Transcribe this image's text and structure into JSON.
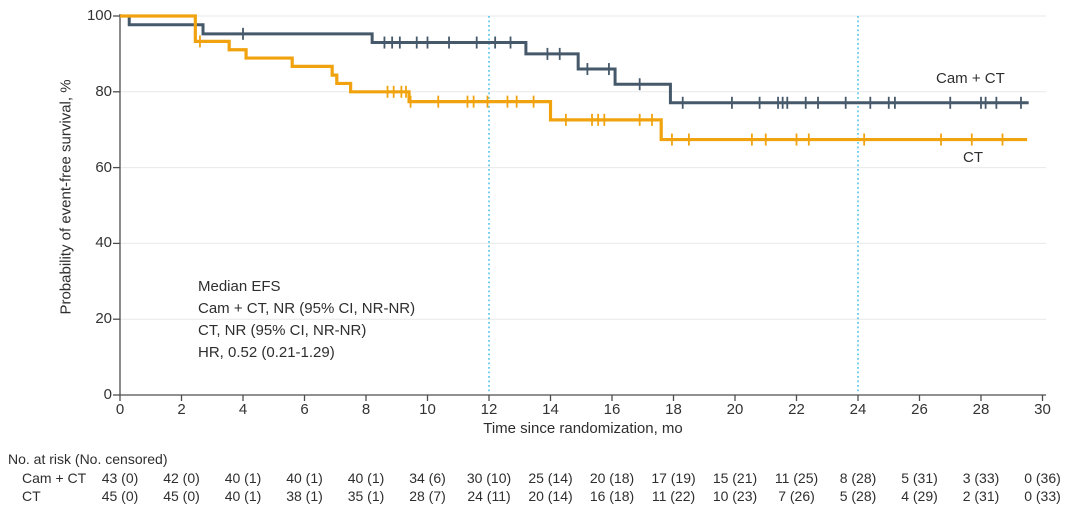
{
  "chart_data": {
    "type": "line",
    "variant": "kaplan_meier_step",
    "title": "",
    "xlabel": "Time since randomization, mo",
    "ylabel": "Probability of event-free survival, %",
    "xlim": [
      0,
      30
    ],
    "ylim": [
      0,
      100
    ],
    "xticks": [
      0,
      2,
      4,
      6,
      8,
      10,
      12,
      14,
      16,
      18,
      20,
      22,
      24,
      26,
      28,
      30
    ],
    "yticks": [
      0,
      20,
      40,
      60,
      80,
      100
    ],
    "grid": "horizontal-light",
    "legend_position": "curve-end-labels",
    "reference_lines_x": [
      12,
      24
    ],
    "series": [
      {
        "name": "Cam + CT",
        "color": "#46596B",
        "end_x": 29.55,
        "steps": [
          [
            0,
            100
          ],
          [
            0.3,
            97.7
          ],
          [
            2.7,
            95.3
          ],
          [
            8.2,
            93.0
          ],
          [
            13.2,
            90.0
          ],
          [
            14.9,
            86.0
          ],
          [
            16.1,
            82.0
          ],
          [
            17.9,
            77.1
          ]
        ],
        "censor_x": [
          4.0,
          8.6,
          8.85,
          9.1,
          9.65,
          10.0,
          10.7,
          11.6,
          12.2,
          12.7,
          13.9,
          14.3,
          15.2,
          15.9,
          16.9,
          18.3,
          19.9,
          20.8,
          21.4,
          21.55,
          21.7,
          22.3,
          22.7,
          23.6,
          24.4,
          25.0,
          25.2,
          27.0,
          28.0,
          28.15,
          28.5,
          29.3
        ]
      },
      {
        "name": "CT",
        "color": "#F0A30F",
        "end_x": 29.5,
        "steps": [
          [
            0,
            100
          ],
          [
            2.45,
            93.3
          ],
          [
            3.55,
            91.1
          ],
          [
            4.1,
            88.9
          ],
          [
            5.6,
            86.7
          ],
          [
            6.9,
            84.4
          ],
          [
            7.05,
            82.2
          ],
          [
            7.5,
            80.0
          ],
          [
            9.4,
            77.4
          ],
          [
            14.0,
            72.6
          ],
          [
            17.6,
            67.4
          ]
        ],
        "censor_x": [
          2.6,
          8.7,
          8.9,
          9.15,
          9.3,
          9.45,
          10.35,
          11.3,
          11.5,
          11.95,
          12.6,
          12.9,
          13.45,
          14.5,
          15.35,
          15.55,
          15.75,
          16.9,
          17.3,
          17.95,
          18.5,
          20.55,
          21.0,
          22.0,
          22.4,
          24.2,
          26.7,
          27.7,
          28.7
        ]
      }
    ],
    "annotation": {
      "lines": [
        "Median EFS",
        "Cam + CT, NR (95% CI, NR-NR)",
        "CT, NR (95% CI, NR-NR)",
        "HR, 0.52 (0.21-1.29)"
      ]
    },
    "risk_table": {
      "title": "No. at risk (No. censored)",
      "months": [
        0,
        2,
        4,
        6,
        8,
        10,
        12,
        14,
        16,
        18,
        20,
        22,
        24,
        26,
        28,
        30
      ],
      "rows": [
        {
          "name": "Cam + CT",
          "values": [
            "43 (0)",
            "42 (0)",
            "40 (1)",
            "40 (1)",
            "40 (1)",
            "34 (6)",
            "30 (10)",
            "25 (14)",
            "20 (18)",
            "17 (19)",
            "15 (21)",
            "11 (25)",
            "8 (28)",
            "5 (31)",
            "3 (33)",
            "0 (36)"
          ]
        },
        {
          "name": "CT",
          "values": [
            "45 (0)",
            "45 (0)",
            "40 (1)",
            "38 (1)",
            "35 (1)",
            "28 (7)",
            "24 (11)",
            "20 (14)",
            "16 (18)",
            "11 (22)",
            "10 (23)",
            "7 (26)",
            "5 (28)",
            "4 (29)",
            "2 (31)",
            "0 (33)"
          ]
        }
      ]
    },
    "colors": {
      "reference_line": "#4FC3E9",
      "grid": "#E8E8E8",
      "axis": "#4D4D4D",
      "text": "#2E2E2E"
    }
  }
}
